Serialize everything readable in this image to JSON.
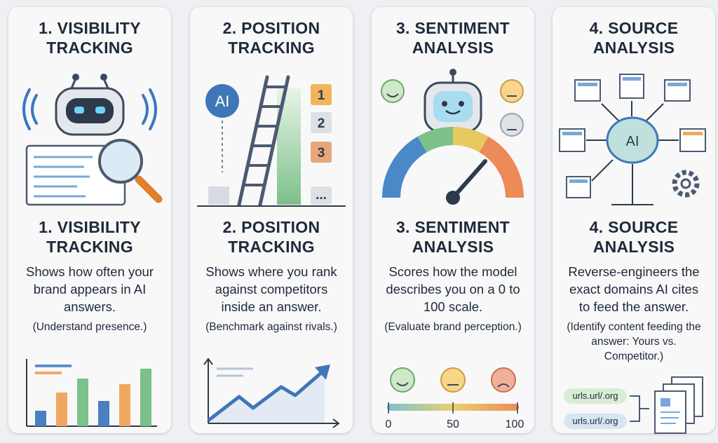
{
  "cards": [
    {
      "heading": "1. VISIBILITY TRACKING",
      "title": "1. VISIBILITY TRACKING",
      "description": "Shows how often your brand appears in AI answers.",
      "note": "(Understand presence.)"
    },
    {
      "heading": "2. POSITION TRACKING",
      "title": "2. POSITION TRACKING",
      "description": "Shows where you rank against competitors inside an answer.",
      "note": "(Benchmark against rivals.)",
      "badge": "AI",
      "ranks": [
        "1",
        "2",
        "3",
        "..."
      ]
    },
    {
      "heading": "3. SENTIMENT ANALYSIS",
      "title": "3. SENTIMENT ANALYSIS",
      "description": "Scores how the model describes you on a 0 to 100 scale.",
      "note": "(Evaluate brand perception.)",
      "scale": [
        0,
        50,
        100
      ]
    },
    {
      "heading": "4. SOURCE ANALYSIS",
      "title": "4. SOURCE ANALYSIS",
      "description": "Reverse-engineers the exact domains AI cites to feed the answer.",
      "note": "(Identify content feeding the answer: Yours vs. Competitor.)",
      "badge": "AI",
      "urls": [
        "urls.url/.org",
        "urls.url/.org"
      ]
    }
  ]
}
